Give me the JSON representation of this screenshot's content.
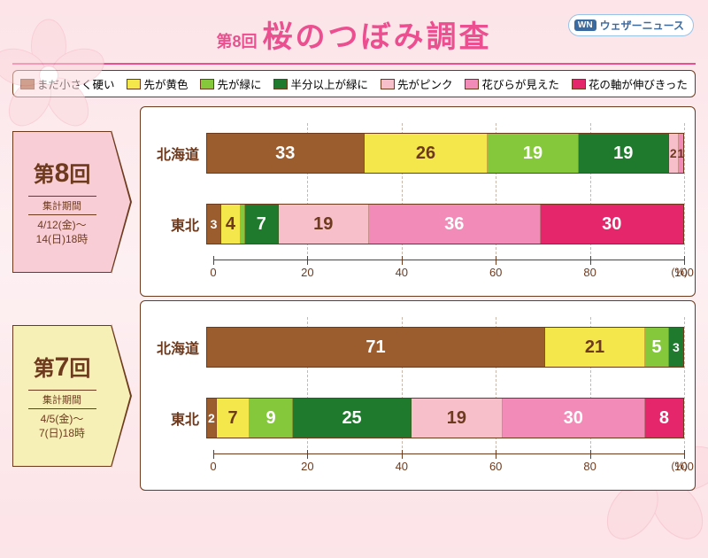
{
  "header": {
    "sub": "第8回",
    "title": "桜のつぼみ調査"
  },
  "brand": {
    "badge": "WN",
    "text": "ウェザーニュース"
  },
  "colors": {
    "brown": "#9b5c2e",
    "yellow": "#f4e74b",
    "ygreen": "#86c83c",
    "dgreen": "#1f7a2e",
    "lpink": "#f7bfc9",
    "pink": "#f28bb7",
    "magenta": "#e6266a"
  },
  "legend": [
    {
      "key": "brown",
      "label": "まだ小さく硬い"
    },
    {
      "key": "yellow",
      "label": "先が黄色"
    },
    {
      "key": "ygreen",
      "label": "先が緑に"
    },
    {
      "key": "dgreen",
      "label": "半分以上が緑に"
    },
    {
      "key": "lpink",
      "label": "先がピンク"
    },
    {
      "key": "pink",
      "label": "花びらが見えた"
    },
    {
      "key": "magenta",
      "label": "花の軸が伸びきった"
    }
  ],
  "axis": {
    "ticks": [
      0,
      20,
      40,
      60,
      80,
      100
    ],
    "unit": "(%)"
  },
  "panels": [
    {
      "round": "8",
      "roundPrefix": "第",
      "roundSuffix": "回",
      "bg": "#f9cdd6",
      "arrow": "#f9cdd6",
      "periodLabel": "集計期間",
      "period": "4/12(金)〜\n14(日)18時",
      "bars": [
        {
          "label": "北海道",
          "segs": [
            {
              "key": "brown",
              "v": 33
            },
            {
              "key": "yellow",
              "v": 26,
              "dark": true
            },
            {
              "key": "ygreen",
              "v": 19
            },
            {
              "key": "dgreen",
              "v": 19
            },
            {
              "key": "lpink",
              "v": 2,
              "dark": true
            },
            {
              "key": "pink",
              "v": 1,
              "dark": true
            }
          ]
        },
        {
          "label": "東北",
          "segs": [
            {
              "key": "brown",
              "v": 3
            },
            {
              "key": "yellow",
              "v": 4,
              "dark": true
            },
            {
              "key": "ygreen",
              "v": 1,
              "hide": true
            },
            {
              "key": "dgreen",
              "v": 7
            },
            {
              "key": "lpink",
              "v": 19,
              "dark": true
            },
            {
              "key": "pink",
              "v": 36
            },
            {
              "key": "magenta",
              "v": 30
            }
          ]
        }
      ]
    },
    {
      "round": "7",
      "roundPrefix": "第",
      "roundSuffix": "回",
      "bg": "#f6f0b6",
      "arrow": "#f6f0b6",
      "periodLabel": "集計期間",
      "period": "4/5(金)〜\n7(日)18時",
      "bars": [
        {
          "label": "北海道",
          "segs": [
            {
              "key": "brown",
              "v": 71
            },
            {
              "key": "yellow",
              "v": 21,
              "dark": true
            },
            {
              "key": "ygreen",
              "v": 5
            },
            {
              "key": "dgreen",
              "v": 3
            }
          ]
        },
        {
          "label": "東北",
          "segs": [
            {
              "key": "brown",
              "v": 2
            },
            {
              "key": "yellow",
              "v": 7,
              "dark": true
            },
            {
              "key": "ygreen",
              "v": 9
            },
            {
              "key": "dgreen",
              "v": 25
            },
            {
              "key": "lpink",
              "v": 19,
              "dark": true
            },
            {
              "key": "pink",
              "v": 30
            },
            {
              "key": "magenta",
              "v": 8
            }
          ]
        }
      ]
    }
  ]
}
